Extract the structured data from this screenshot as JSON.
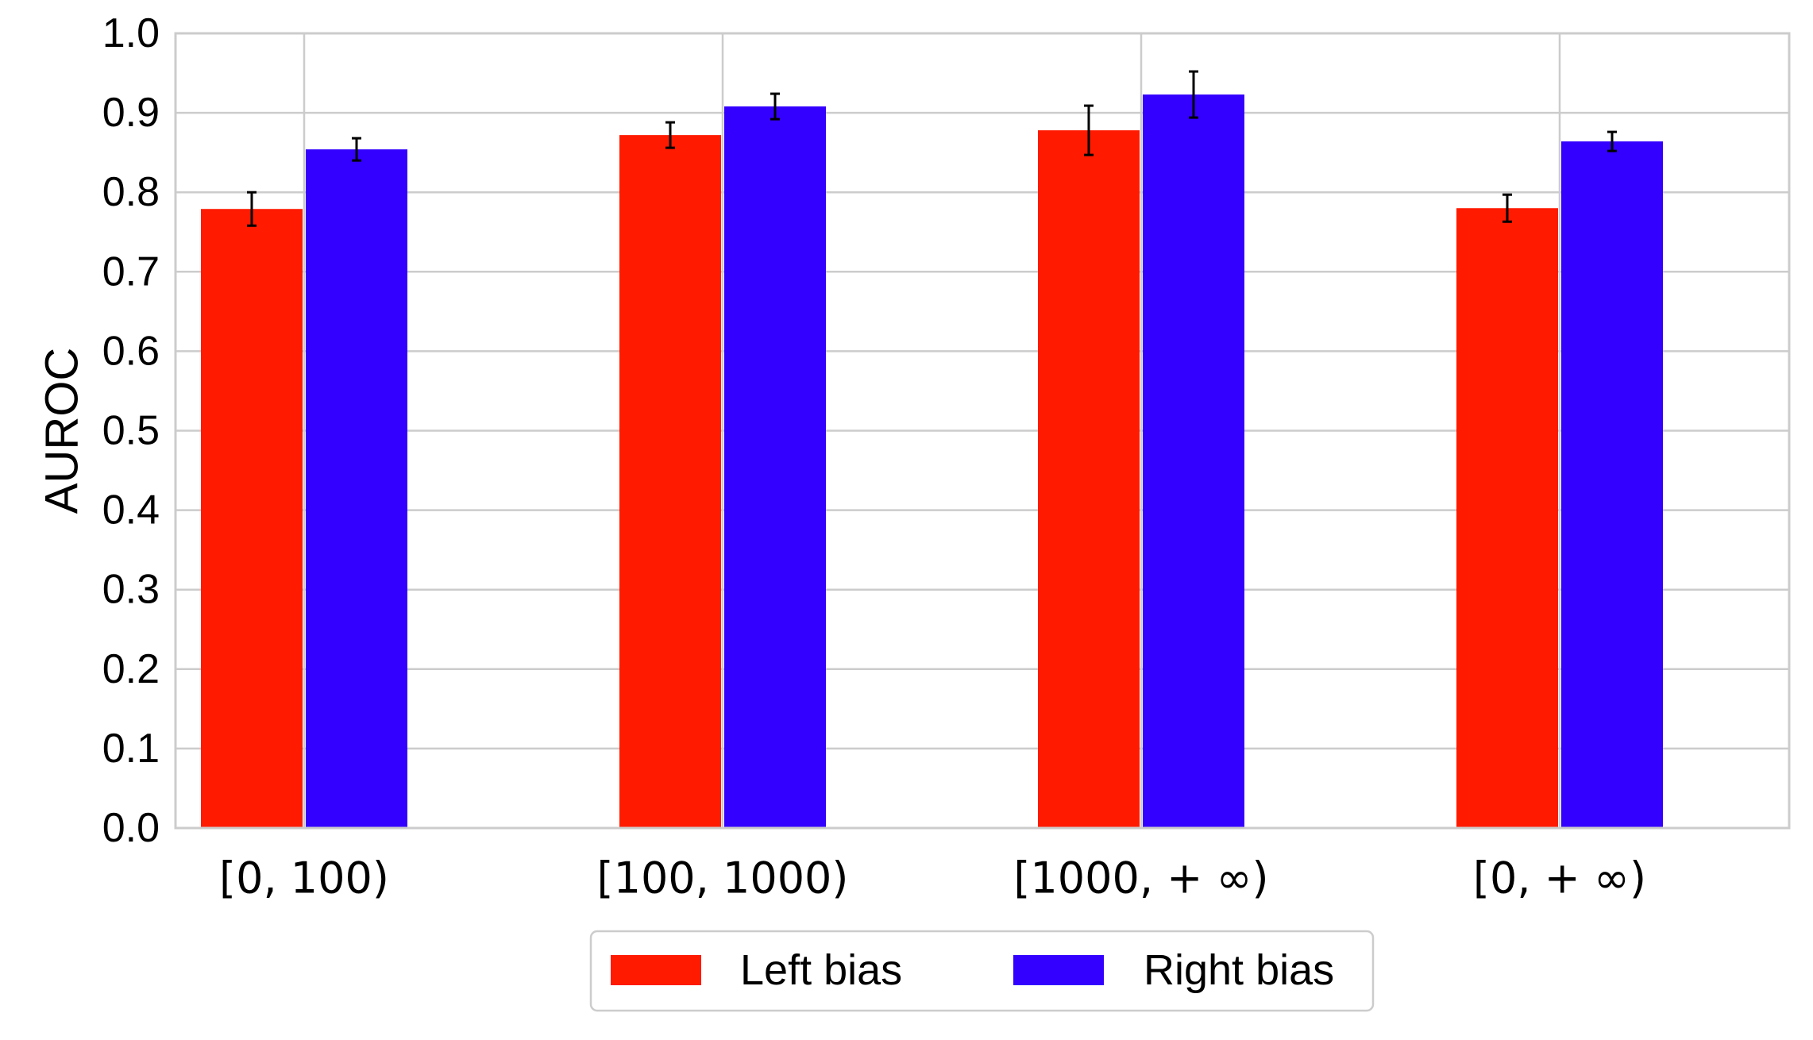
{
  "chart_data": {
    "type": "bar",
    "title": "",
    "xlabel": "",
    "ylabel": "AUROC",
    "ylim": [
      0.0,
      1.0
    ],
    "yticks": [
      "0.0",
      "0.1",
      "0.2",
      "0.3",
      "0.4",
      "0.5",
      "0.6",
      "0.7",
      "0.8",
      "0.9",
      "1.0"
    ],
    "categories": [
      "[0, 100)",
      "[100, 1000)",
      "[1000, + ∞)",
      "[0, + ∞)"
    ],
    "grid": true,
    "legend_position": "bottom-center",
    "series": [
      {
        "name": "Left bias",
        "color": "#ff1a00",
        "values": [
          0.779,
          0.872,
          0.878,
          0.78
        ],
        "errors": [
          0.021,
          0.016,
          0.031,
          0.017
        ]
      },
      {
        "name": "Right bias",
        "color": "#3300ff",
        "values": [
          0.854,
          0.908,
          0.923,
          0.864
        ],
        "errors": [
          0.014,
          0.016,
          0.029,
          0.012
        ]
      }
    ]
  }
}
